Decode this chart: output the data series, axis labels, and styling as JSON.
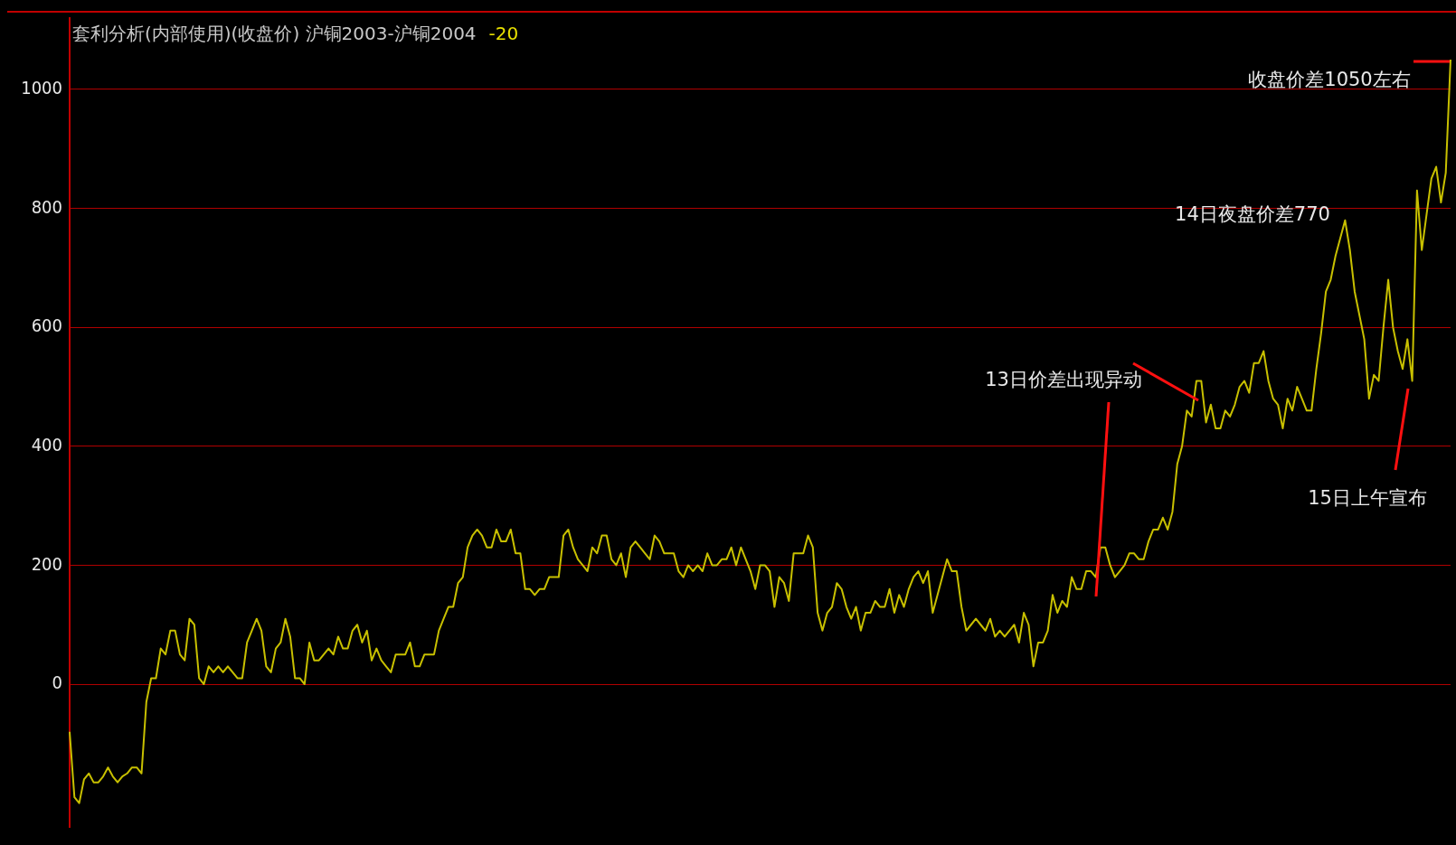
{
  "chart_data": {
    "type": "line",
    "title": "套利分析(内部使用)(收盘价) 沪铜2003-沪铜2004",
    "subtitle": "-20",
    "categories": [
      null,
      null,
      null,
      null,
      null,
      null,
      null,
      null,
      null,
      null,
      null,
      null,
      null,
      null,
      null,
      null,
      null,
      null,
      null,
      null,
      null,
      null,
      null,
      null,
      null,
      null,
      null,
      null,
      null,
      null,
      null,
      null,
      null,
      null,
      null,
      null,
      null,
      null,
      null,
      null,
      null,
      null,
      null,
      null,
      null,
      null,
      null,
      null,
      null,
      null,
      null,
      null,
      null,
      null,
      null,
      null,
      null,
      null,
      null,
      null,
      null,
      null,
      null,
      null,
      null,
      null,
      null,
      null,
      null,
      null,
      null,
      null,
      null,
      null,
      null,
      null,
      null,
      null,
      null,
      null,
      null,
      null,
      null,
      null,
      null,
      null,
      null,
      null,
      null,
      null,
      null,
      null,
      null,
      null,
      null,
      null,
      null,
      null,
      null,
      null,
      null,
      null,
      null,
      null,
      null,
      null,
      null,
      null,
      null,
      null,
      null,
      null,
      null,
      null,
      null,
      null,
      null,
      null,
      null,
      null,
      null,
      null,
      null,
      null,
      null,
      null,
      null,
      null,
      null,
      null,
      null,
      null,
      null,
      null,
      null,
      null,
      null,
      null,
      null,
      null,
      null,
      null,
      null,
      null,
      null,
      null,
      null,
      null,
      null,
      null,
      null,
      null,
      null,
      null,
      null,
      null,
      null,
      null,
      null,
      null,
      null,
      null,
      null,
      null,
      null,
      null,
      null,
      null,
      null,
      null,
      null,
      null,
      null,
      null,
      null,
      null,
      null,
      null,
      null,
      null,
      null,
      null,
      null,
      null,
      null,
      null,
      null,
      null,
      null,
      null,
      null,
      null,
      null,
      null,
      null,
      null,
      null,
      null,
      null,
      null,
      null,
      null,
      null,
      null,
      null,
      null,
      null,
      null,
      null,
      null,
      null,
      null,
      null,
      null,
      null,
      null,
      null,
      null,
      null,
      null,
      null,
      null,
      null,
      null,
      null,
      null,
      null,
      null,
      null,
      null,
      null,
      null,
      null,
      null,
      null,
      null,
      null,
      null,
      null,
      null,
      null,
      null,
      null,
      null,
      null,
      null,
      null,
      null,
      null,
      null,
      null,
      null,
      null,
      null,
      null,
      null,
      null,
      null,
      null,
      null,
      null,
      null,
      null,
      null,
      null,
      null,
      null,
      null,
      null,
      null,
      null,
      null,
      null,
      null,
      null,
      null,
      null,
      null,
      null,
      null,
      null,
      null,
      null,
      null,
      null,
      null,
      null,
      null,
      null
    ],
    "series": [
      {
        "color": "#c8c000",
        "values": [
          -80,
          -190,
          -200,
          -160,
          -150,
          -165,
          -165,
          -155,
          -140,
          -155,
          -165,
          -155,
          -150,
          -140,
          -140,
          -150,
          -30,
          10,
          10,
          60,
          50,
          90,
          90,
          50,
          40,
          110,
          100,
          10,
          0,
          30,
          20,
          30,
          20,
          30,
          20,
          10,
          10,
          70,
          90,
          110,
          90,
          30,
          20,
          60,
          70,
          110,
          80,
          10,
          10,
          0,
          70,
          40,
          40,
          50,
          60,
          50,
          80,
          60,
          60,
          90,
          100,
          70,
          90,
          40,
          60,
          40,
          30,
          20,
          50,
          50,
          50,
          70,
          30,
          30,
          50,
          50,
          50,
          90,
          110,
          130,
          130,
          170,
          180,
          230,
          250,
          260,
          250,
          230,
          230,
          260,
          240,
          240,
          260,
          220,
          220,
          160,
          160,
          150,
          160,
          160,
          180,
          180,
          180,
          250,
          260,
          230,
          210,
          200,
          190,
          230,
          220,
          250,
          250,
          210,
          200,
          220,
          180,
          230,
          240,
          230,
          220,
          210,
          250,
          240,
          220,
          220,
          220,
          190,
          180,
          200,
          190,
          200,
          190,
          220,
          200,
          200,
          210,
          210,
          230,
          200,
          230,
          210,
          190,
          160,
          200,
          200,
          190,
          130,
          180,
          170,
          140,
          220,
          220,
          220,
          250,
          230,
          120,
          90,
          120,
          130,
          170,
          160,
          130,
          110,
          130,
          90,
          120,
          120,
          140,
          130,
          130,
          160,
          120,
          150,
          130,
          160,
          180,
          190,
          170,
          190,
          120,
          150,
          180,
          210,
          190,
          190,
          130,
          90,
          100,
          110,
          100,
          90,
          110,
          80,
          90,
          80,
          90,
          100,
          70,
          120,
          100,
          30,
          70,
          70,
          90,
          150,
          120,
          140,
          130,
          180,
          160,
          160,
          190,
          190,
          180,
          230,
          230,
          200,
          180,
          190,
          200,
          220,
          220,
          210,
          210,
          240,
          260,
          260,
          280,
          260,
          290,
          370,
          400,
          460,
          450,
          510,
          510,
          440,
          470,
          430,
          430,
          460,
          450,
          470,
          500,
          510,
          490,
          540,
          540,
          560,
          510,
          480,
          470,
          430,
          480,
          460,
          500,
          480,
          460,
          460,
          530,
          590,
          660,
          680,
          720,
          750,
          780,
          730,
          660,
          620,
          580,
          480,
          520,
          510,
          600,
          680,
          600,
          560,
          530,
          580,
          510,
          830,
          730,
          790,
          850,
          870,
          810,
          860,
          1050
        ]
      }
    ],
    "ylim": [
      -240,
      1120
    ],
    "yticks": [
      0,
      200,
      400,
      600,
      800,
      1000
    ],
    "grid": "y",
    "tick_labels": "y",
    "legend": false,
    "marker": "none",
    "line_style": "solid",
    "annotations": [
      "收盘价差1050左右",
      "14日夜盘价差770",
      "13日价差出现异动",
      "15日上午宣布"
    ]
  }
}
